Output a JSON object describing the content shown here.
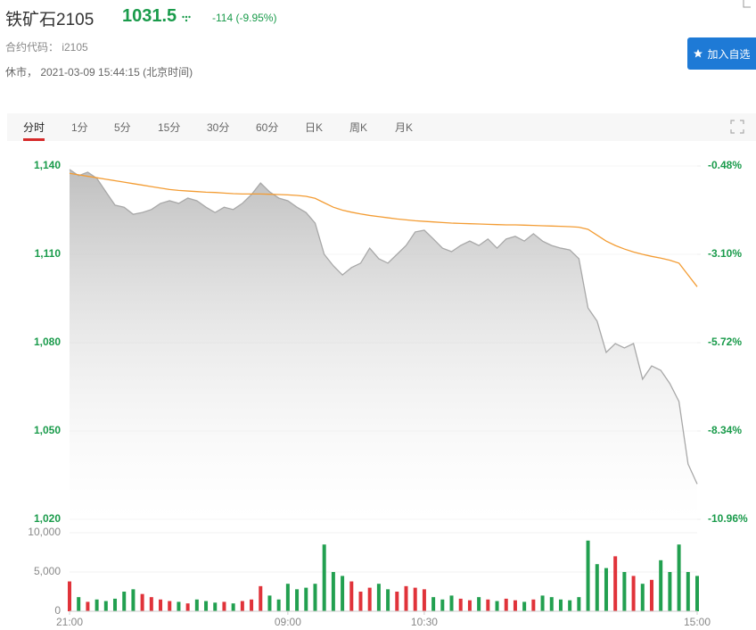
{
  "header": {
    "symbol": "铁矿石2105",
    "price": "1031.5",
    "change": "-114 (-9.95%)",
    "code": "合约代码： i2105",
    "status": "休市， 2021-03-09 15:44:15 (北京时间)",
    "button": "加入自选"
  },
  "tabs": [
    "分时",
    "1分",
    "5分",
    "15分",
    "30分",
    "60分",
    "日K",
    "周K",
    "月K"
  ],
  "chart_data": {
    "type": "line",
    "x": [
      0,
      5,
      10,
      15,
      20,
      25,
      30,
      35,
      40,
      45,
      50,
      55,
      60,
      65,
      70,
      75,
      80,
      85,
      90,
      95,
      100,
      105,
      110,
      115,
      120,
      125,
      130,
      135,
      140,
      145,
      150,
      155,
      160,
      165,
      170,
      175,
      180,
      185,
      190,
      195,
      200,
      205,
      210,
      215,
      220,
      225,
      230,
      235,
      240,
      245,
      250,
      255,
      260,
      265,
      270,
      275,
      280,
      285,
      290,
      295,
      300,
      305,
      310,
      315,
      320,
      325,
      330,
      335,
      340,
      345
    ],
    "xlim": [
      0,
      345
    ],
    "xticks": [
      {
        "value": 0,
        "label": "21:00"
      },
      {
        "value": 120,
        "label": "09:00"
      },
      {
        "value": 195,
        "label": "10:30"
      },
      {
        "value": 345,
        "label": "15:00"
      }
    ],
    "ylim": [
      1020,
      1140
    ],
    "yticks": [
      {
        "value": 1140,
        "label": "1,140"
      },
      {
        "value": 1110,
        "label": "1,110"
      },
      {
        "value": 1080,
        "label": "1,080"
      },
      {
        "value": 1050,
        "label": "1,050"
      },
      {
        "value": 1020,
        "label": "1,020"
      }
    ],
    "y2lim": [
      -0.48,
      -10.96
    ],
    "y2ticks": [
      {
        "value": -0.48,
        "label": "-0.48%"
      },
      {
        "value": -3.1,
        "label": "-3.10%"
      },
      {
        "value": -5.72,
        "label": "-5.72%"
      },
      {
        "value": -8.34,
        "label": "-8.34%"
      },
      {
        "value": -10.96,
        "label": "-10.96%"
      }
    ],
    "series": [
      {
        "color": "#a8a8a8",
        "values": [
          1138.8,
          1136.7,
          1137.9,
          1135.8,
          1131.2,
          1126.7,
          1126,
          1123.6,
          1124.2,
          1125.2,
          1127.3,
          1128.2,
          1127.3,
          1129.1,
          1128.2,
          1126,
          1124.2,
          1126,
          1125.2,
          1127.3,
          1130.3,
          1134.2,
          1131.2,
          1129.1,
          1128.2,
          1126,
          1124.2,
          1120.6,
          1110,
          1106.1,
          1103,
          1105.5,
          1107,
          1112.1,
          1108.5,
          1107,
          1110,
          1113,
          1117.6,
          1118.2,
          1115.2,
          1112.1,
          1110.9,
          1113,
          1114.5,
          1113,
          1115.2,
          1112.1,
          1115.2,
          1116.1,
          1114.5,
          1117,
          1114.5,
          1113,
          1112.1,
          1111.5,
          1108.5,
          1091.8,
          1087.3,
          1076.7,
          1079.7,
          1078.2,
          1079.7,
          1067.6,
          1072.1,
          1070.6,
          1066.1,
          1060,
          1038.8,
          1032
        ]
      },
      {
        "color": "#f39c33",
        "values": [
          1137.5,
          1137,
          1136.5,
          1136,
          1135.5,
          1135,
          1134.5,
          1134,
          1133.5,
          1133,
          1132.5,
          1132,
          1131.7,
          1131.5,
          1131.3,
          1131.1,
          1131,
          1130.8,
          1130.6,
          1130.5,
          1130.5,
          1130.5,
          1130.4,
          1130.3,
          1130.2,
          1130,
          1129.7,
          1129,
          1127.5,
          1126,
          1125,
          1124.3,
          1123.7,
          1123.2,
          1122.8,
          1122.4,
          1122,
          1121.7,
          1121.4,
          1121.2,
          1121,
          1120.8,
          1120.6,
          1120.5,
          1120.4,
          1120.3,
          1120.2,
          1120.1,
          1120,
          1120,
          1119.9,
          1119.8,
          1119.7,
          1119.6,
          1119.5,
          1119.4,
          1119.2,
          1118.5,
          1116.5,
          1114.5,
          1113,
          1111.8,
          1110.8,
          1110,
          1109.3,
          1108.7,
          1108,
          1107,
          1103,
          1099
        ]
      }
    ],
    "volume": {
      "values": [
        3800,
        1800,
        1200,
        1500,
        1300,
        1600,
        2500,
        2800,
        2200,
        1800,
        1500,
        1300,
        1200,
        1000,
        1500,
        1300,
        1100,
        1200,
        1000,
        1300,
        1500,
        3200,
        2000,
        1500,
        3500,
        2800,
        3000,
        3500,
        8500,
        5000,
        4500,
        3800,
        2500,
        3000,
        3500,
        2800,
        2500,
        3200,
        3000,
        2800,
        1800,
        1500,
        2000,
        1600,
        1400,
        1800,
        1500,
        1300,
        1600,
        1400,
        1200,
        1500,
        2000,
        1800,
        1500,
        1400,
        1800,
        9000,
        6000,
        5500,
        7000,
        5000,
        4500,
        3500,
        4000,
        6500,
        5000,
        8500,
        5000,
        4500
      ],
      "ylim": [
        0,
        10000
      ],
      "yticks": [
        {
          "value": 10000,
          "label": "10,000"
        },
        {
          "value": 5000,
          "label": "5,000"
        },
        0
      ],
      "up_color": "#e0333a",
      "down_color": "#22a050"
    }
  }
}
